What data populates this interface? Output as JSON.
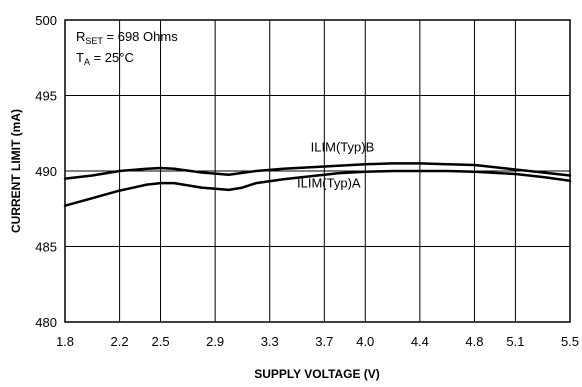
{
  "chart_data": {
    "type": "line",
    "title": "",
    "xlabel": "SUPPLY VOLTAGE (V)",
    "ylabel": "CURRENT LIMIT (mA)",
    "x_ticks": [
      "1.8",
      "2.2",
      "2.5",
      "2.9",
      "3.3",
      "3.7",
      "4.0",
      "4.4",
      "4.8",
      "5.1",
      "5.5"
    ],
    "x_tick_values": [
      1.8,
      2.2,
      2.5,
      2.9,
      3.3,
      3.7,
      4.0,
      4.4,
      4.8,
      5.1,
      5.5
    ],
    "xlim": [
      1.8,
      5.5
    ],
    "ylim": [
      480,
      500
    ],
    "y_ticks": [
      480,
      485,
      490,
      495,
      500
    ],
    "grid": true,
    "annotations": {
      "rset": {
        "main": "R",
        "sub": "SET",
        "rest": " = 698 Ohms"
      },
      "ta": {
        "main": "T",
        "sub": "A",
        "rest": " = 25°C"
      }
    },
    "series": [
      {
        "name": "ILIM(Typ)B",
        "x": [
          1.8,
          2.0,
          2.2,
          2.4,
          2.5,
          2.6,
          2.8,
          3.0,
          3.2,
          3.4,
          3.6,
          3.8,
          4.0,
          4.2,
          4.4,
          4.6,
          4.8,
          5.0,
          5.1,
          5.3,
          5.5
        ],
        "y": [
          489.5,
          489.7,
          490.0,
          490.15,
          490.2,
          490.15,
          489.9,
          489.75,
          490.0,
          490.15,
          490.25,
          490.35,
          490.45,
          490.5,
          490.5,
          490.45,
          490.4,
          490.2,
          490.1,
          489.9,
          489.7
        ]
      },
      {
        "name": "ILIM(Typ)A",
        "x": [
          1.8,
          2.0,
          2.2,
          2.4,
          2.5,
          2.6,
          2.8,
          3.0,
          3.1,
          3.2,
          3.4,
          3.6,
          3.8,
          4.0,
          4.2,
          4.4,
          4.6,
          4.8,
          5.0,
          5.1,
          5.3,
          5.5
        ],
        "y": [
          487.7,
          488.2,
          488.7,
          489.1,
          489.2,
          489.2,
          488.9,
          488.75,
          488.9,
          489.2,
          489.45,
          489.65,
          489.85,
          489.95,
          490.0,
          490.0,
          490.0,
          489.95,
          489.85,
          489.8,
          489.6,
          489.35
        ]
      }
    ],
    "series_label_anchor": [
      {
        "x": 3.6,
        "y": 491.3
      },
      {
        "x": 3.5,
        "y": 488.9
      }
    ]
  }
}
